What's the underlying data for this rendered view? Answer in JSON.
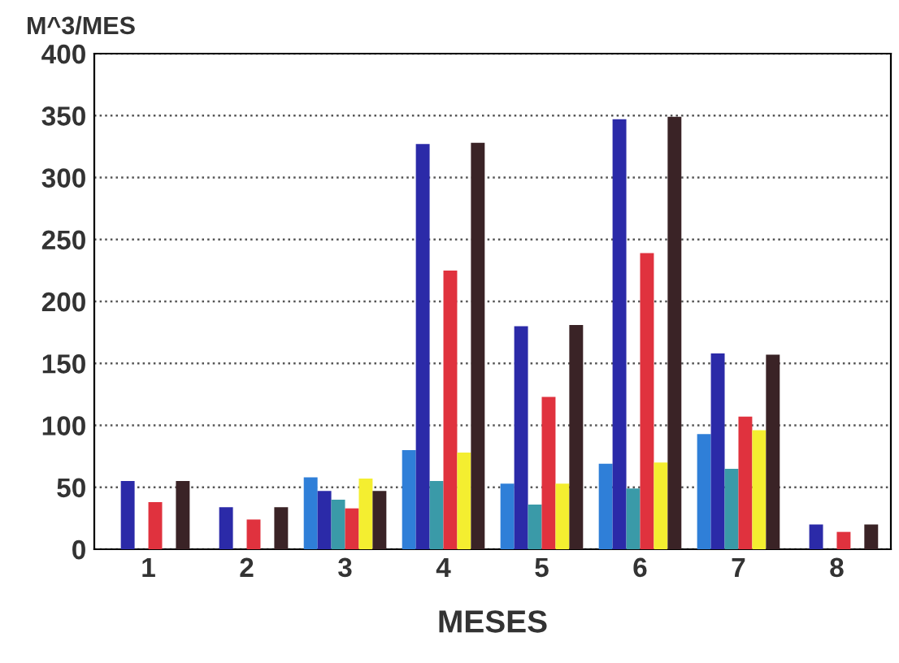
{
  "chart_data": {
    "type": "bar",
    "xlabel": "MESES",
    "ylabel": "M^3/MES",
    "categories": [
      "1",
      "2",
      "3",
      "4",
      "5",
      "6",
      "7",
      "8"
    ],
    "series": [
      {
        "color": "#2f7fd8",
        "values": [
          null,
          null,
          58,
          80,
          53,
          69,
          93,
          null
        ]
      },
      {
        "color": "#2b2aa8",
        "values": [
          55,
          34,
          47,
          327,
          180,
          347,
          158,
          20
        ]
      },
      {
        "color": "#3a9aa8",
        "values": [
          null,
          null,
          40,
          55,
          36,
          49,
          65,
          null
        ]
      },
      {
        "color": "#e0323e",
        "values": [
          38,
          24,
          33,
          225,
          123,
          239,
          107,
          14
        ]
      },
      {
        "color": "#f4ee30",
        "values": [
          null,
          null,
          57,
          78,
          53,
          70,
          96,
          null
        ]
      },
      {
        "color": "#3a2326",
        "values": [
          55,
          34,
          47,
          328,
          181,
          349,
          157,
          20
        ]
      }
    ],
    "ylim": [
      0,
      400
    ],
    "yticks": [
      0,
      50,
      100,
      150,
      200,
      250,
      300,
      350,
      400
    ],
    "grid": "y"
  }
}
